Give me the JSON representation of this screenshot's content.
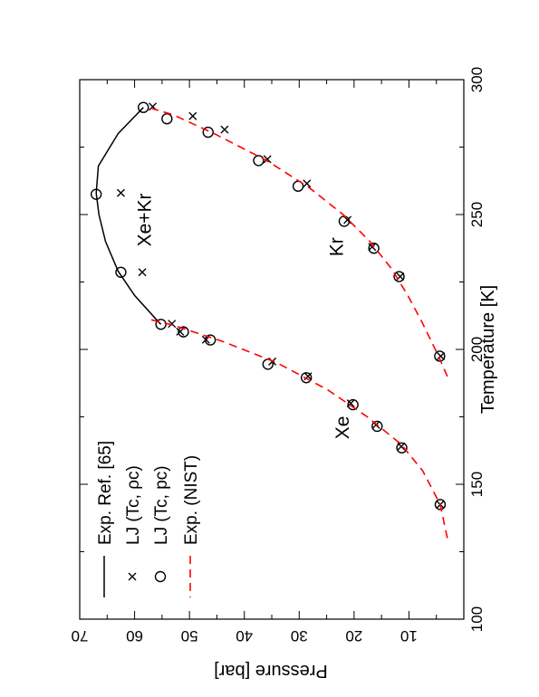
{
  "chart_data": {
    "type": "scatter",
    "orientation": "rotated-90-cw",
    "xlabel": "Temperature [K]",
    "ylabel": "Pressure [bar]",
    "xlim": [
      100,
      300
    ],
    "ylim": [
      0,
      70
    ],
    "xticks": [
      100,
      150,
      200,
      250,
      300
    ],
    "yticks": [
      10,
      20,
      30,
      40,
      50,
      60,
      70
    ],
    "x_minor_step": 25,
    "y_minor_step": 5,
    "grid": false,
    "legend_position": "top-left",
    "legend": [
      {
        "label": "Exp.  Ref. [65]",
        "style": "solid-line",
        "color": "#000000"
      },
      {
        "label": "LJ (Tc, ρc)",
        "style": "cross",
        "color": "#000000"
      },
      {
        "label": "LJ (Tc, pc)",
        "style": "circle",
        "color": "#000000"
      },
      {
        "label": "Exp. (NIST)",
        "style": "dashed-line",
        "color": "#ff0000"
      }
    ],
    "annotations": [
      {
        "text": "Xe",
        "x": 171,
        "y": 21
      },
      {
        "text": "Kr",
        "x": 238,
        "y": 22
      },
      {
        "text": "Xe+Kr",
        "x": 248,
        "y": 57
      }
    ],
    "series": [
      {
        "name": "Exp.  Ref. [65]",
        "style": "solid-line",
        "points": [
          [
            209.3,
            55.2
          ],
          [
            211,
            56
          ],
          [
            220,
            60
          ],
          [
            229,
            63
          ],
          [
            240,
            65.3
          ],
          [
            250,
            66.5
          ],
          [
            258,
            67
          ],
          [
            268,
            66.6
          ],
          [
            280,
            63
          ],
          [
            289.7,
            58.4
          ]
        ]
      },
      {
        "name": "LJ (Tc, ρc)",
        "style": "cross",
        "points": [
          [
            142.5,
            4.3
          ],
          [
            164,
            11.4
          ],
          [
            172,
            16
          ],
          [
            180,
            20.6
          ],
          [
            190,
            28.4
          ],
          [
            195.5,
            34.9
          ],
          [
            203.6,
            47
          ],
          [
            206.6,
            51.7
          ],
          [
            209.5,
            53.2
          ],
          [
            228.6,
            58.6
          ],
          [
            258,
            62.5
          ],
          [
            197.5,
            4.2
          ],
          [
            227,
            11.6
          ],
          [
            238,
            16.7
          ],
          [
            248,
            21.2
          ],
          [
            261.5,
            28.6
          ],
          [
            270.5,
            35.8
          ],
          [
            281.5,
            43.6
          ],
          [
            286.5,
            49.4
          ],
          [
            290,
            56.7
          ]
        ]
      },
      {
        "name": "LJ (Tc, pc)",
        "style": "circle",
        "points": [
          [
            142.5,
            4.3
          ],
          [
            163.5,
            11.3
          ],
          [
            171.5,
            15.8
          ],
          [
            179.5,
            20.2
          ],
          [
            189.5,
            28.7
          ],
          [
            194.5,
            35.7
          ],
          [
            203.5,
            46.2
          ],
          [
            206.5,
            51.1
          ],
          [
            209.3,
            55.2
          ],
          [
            228.6,
            62.5
          ],
          [
            257.5,
            67
          ],
          [
            289.7,
            58.4
          ],
          [
            197.5,
            4.4
          ],
          [
            227,
            11.8
          ],
          [
            237.5,
            16.4
          ],
          [
            247.5,
            21.8
          ],
          [
            260.5,
            30.2
          ],
          [
            270,
            37.4
          ],
          [
            280.5,
            46.6
          ],
          [
            285.5,
            54.1
          ]
        ]
      },
      {
        "name": "Exp. (NIST)",
        "style": "dashed-line",
        "segments": [
          [
            [
              130,
              3
            ],
            [
              142.5,
              4.3
            ],
            [
              155,
              7.5
            ],
            [
              165,
              11.5
            ],
            [
              175,
              17.6
            ],
            [
              185,
              24.8
            ],
            [
              195,
              34
            ],
            [
              203,
              44
            ],
            [
              209,
              53
            ],
            [
              211,
              57
            ]
          ],
          [
            [
              190,
              3
            ],
            [
              197.5,
              4.6
            ],
            [
              210,
              7.6
            ],
            [
              220,
              10.2
            ],
            [
              230,
              13.2
            ],
            [
              240,
              17.1
            ],
            [
              250,
              22
            ],
            [
              260,
              28.2
            ],
            [
              270,
              35.9
            ],
            [
              280,
              45.5
            ],
            [
              287,
              53
            ],
            [
              290,
              58
            ]
          ]
        ]
      }
    ]
  }
}
